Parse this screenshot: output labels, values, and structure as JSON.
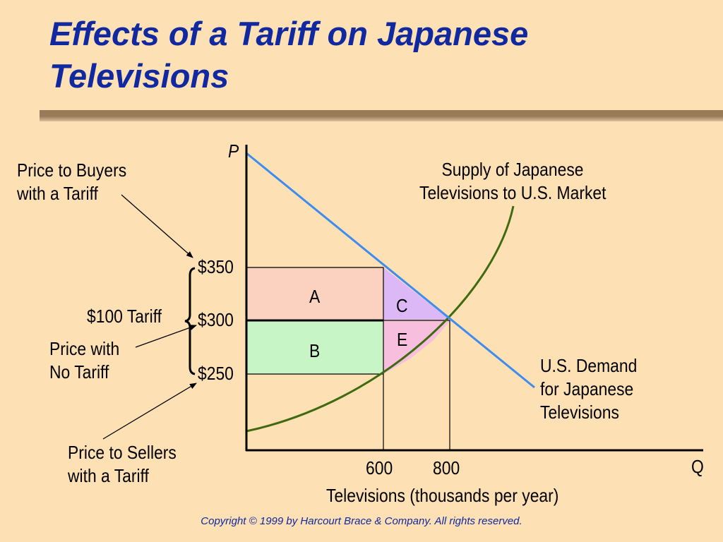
{
  "slide": {
    "title_line1": "Effects of a Tariff on Japanese",
    "title_line2": "Televisions",
    "copyright": "Copyright © 1999 by Harcourt Brace & Company. All rights reserved."
  },
  "axes": {
    "y_symbol": "P",
    "x_symbol": "Q",
    "x_title": "Televisions (thousands per year)",
    "x_ticks": [
      "600",
      "800"
    ],
    "y_ticks": [
      "$350",
      "$300",
      "$250"
    ]
  },
  "curves": {
    "supply_line1": "Supply of Japanese",
    "supply_line2": "Televisions to U.S. Market",
    "demand_line1": "U.S. Demand",
    "demand_line2": "for Japanese",
    "demand_line3": "Televisions"
  },
  "regions": {
    "a": "A",
    "b": "B",
    "c": "C",
    "e": "E"
  },
  "annotations": {
    "buyers_line1": "Price to Buyers",
    "buyers_line2": "with a Tariff",
    "tariff": "$100 Tariff",
    "no_tariff_line1": "Price with",
    "no_tariff_line2": "No Tariff",
    "sellers_line1": "Price to Sellers",
    "sellers_line2": "with a Tariff"
  },
  "colors": {
    "title": "#1028a0",
    "background": "#fde0b4",
    "demand_curve": "#3d8cf0",
    "supply_curve": "#3f6a10",
    "region_a": "#fbd2c0",
    "region_b": "#c8f5c6",
    "region_c": "#dcb8f6",
    "region_e": "#f8bede"
  }
}
